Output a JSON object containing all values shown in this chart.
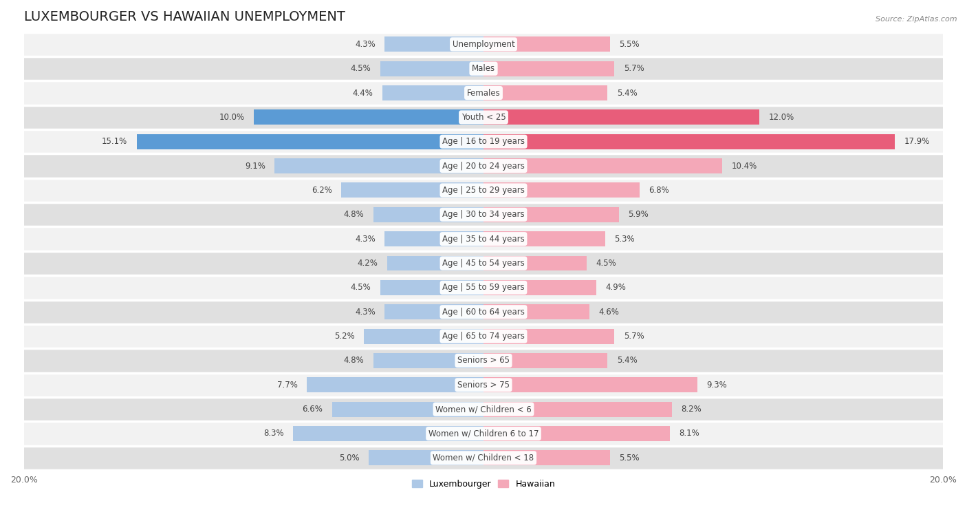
{
  "title": "LUXEMBOURGER VS HAWAIIAN UNEMPLOYMENT",
  "source": "Source: ZipAtlas.com",
  "categories": [
    "Unemployment",
    "Males",
    "Females",
    "Youth < 25",
    "Age | 16 to 19 years",
    "Age | 20 to 24 years",
    "Age | 25 to 29 years",
    "Age | 30 to 34 years",
    "Age | 35 to 44 years",
    "Age | 45 to 54 years",
    "Age | 55 to 59 years",
    "Age | 60 to 64 years",
    "Age | 65 to 74 years",
    "Seniors > 65",
    "Seniors > 75",
    "Women w/ Children < 6",
    "Women w/ Children 6 to 17",
    "Women w/ Children < 18"
  ],
  "luxembourger": [
    4.3,
    4.5,
    4.4,
    10.0,
    15.1,
    9.1,
    6.2,
    4.8,
    4.3,
    4.2,
    4.5,
    4.3,
    5.2,
    4.8,
    7.7,
    6.6,
    8.3,
    5.0
  ],
  "hawaiian": [
    5.5,
    5.7,
    5.4,
    12.0,
    17.9,
    10.4,
    6.8,
    5.9,
    5.3,
    4.5,
    4.9,
    4.6,
    5.7,
    5.4,
    9.3,
    8.2,
    8.1,
    5.5
  ],
  "luxembourger_color": "#adc8e6",
  "hawaiian_color": "#f4a8b8",
  "luxembourger_highlight_color": "#5b9bd5",
  "hawaiian_highlight_color": "#e85d7a",
  "axis_limit": 20.0,
  "background_color": "#ffffff",
  "row_bg_light": "#f2f2f2",
  "row_bg_dark": "#e0e0e0",
  "bar_height": 0.62,
  "title_fontsize": 14,
  "label_fontsize": 8.5,
  "tick_fontsize": 9,
  "highlight_rows": [
    3,
    4
  ]
}
